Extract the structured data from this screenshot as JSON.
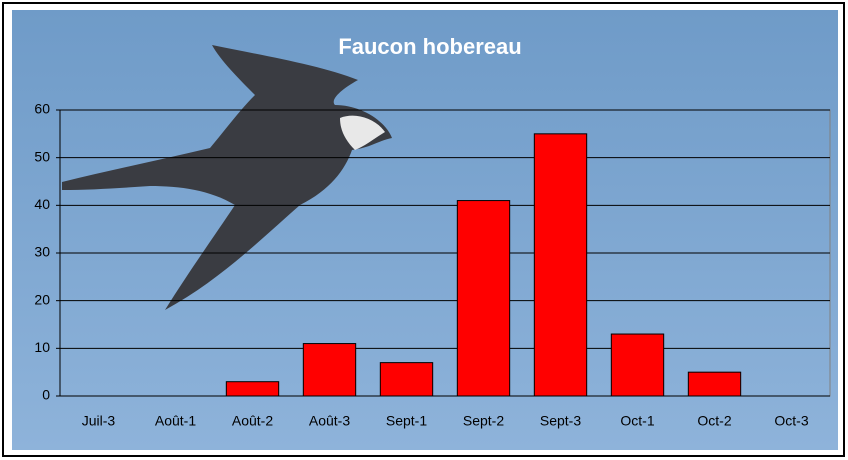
{
  "chart_data": {
    "type": "bar",
    "title": "Faucon hobereau",
    "categories": [
      "Juil-3",
      "Août-1",
      "Août-2",
      "Août-3",
      "Sept-1",
      "Sept-2",
      "Sept-3",
      "Oct-1",
      "Oct-2",
      "Oct-3"
    ],
    "values": [
      0,
      0,
      3,
      11,
      7,
      41,
      55,
      13,
      5,
      0
    ],
    "color": "#ff0000",
    "ylim": [
      0,
      60
    ],
    "yticks": [
      0,
      10,
      20,
      30,
      40,
      50,
      60
    ],
    "grid": true
  }
}
